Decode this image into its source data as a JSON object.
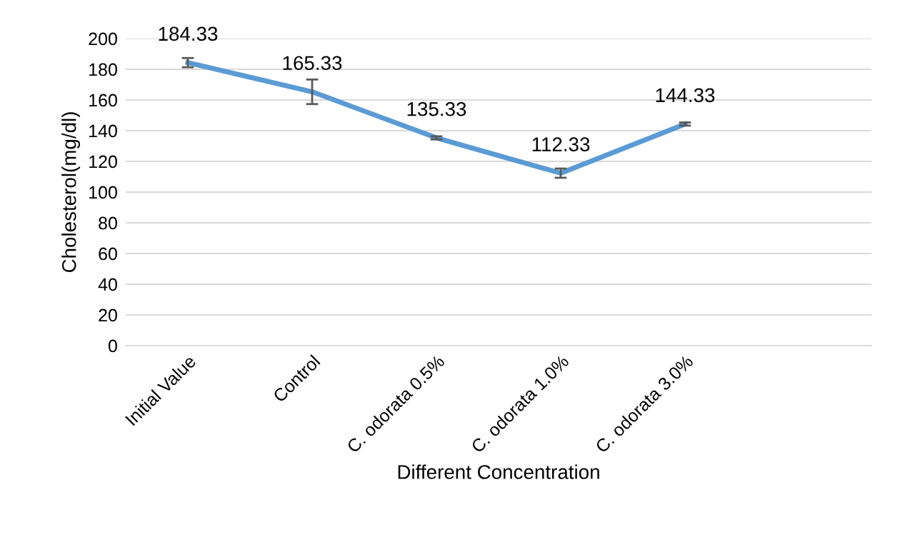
{
  "chart_data": {
    "type": "line",
    "xlabel": "Different Concentration",
    "ylabel": "Cholesterol(mg/dl)",
    "categories": [
      "Initial Value",
      "Control",
      "C. odorata 0.5%",
      "C. odorata 1.0%",
      "C. odorata 3.0%",
      null
    ],
    "series": [
      {
        "color": "#5b9bd5",
        "values": [
          184.33,
          165.33,
          135.33,
          112.33,
          144.33,
          null
        ],
        "errors": [
          3,
          8,
          1,
          3,
          1,
          null
        ]
      }
    ],
    "ylim": [
      0,
      200
    ],
    "yticks": [
      0,
      20,
      40,
      60,
      80,
      100,
      120,
      140,
      160,
      180,
      200
    ],
    "grid": "y",
    "data_labels": true,
    "marker": "none",
    "line_style": "solid"
  }
}
